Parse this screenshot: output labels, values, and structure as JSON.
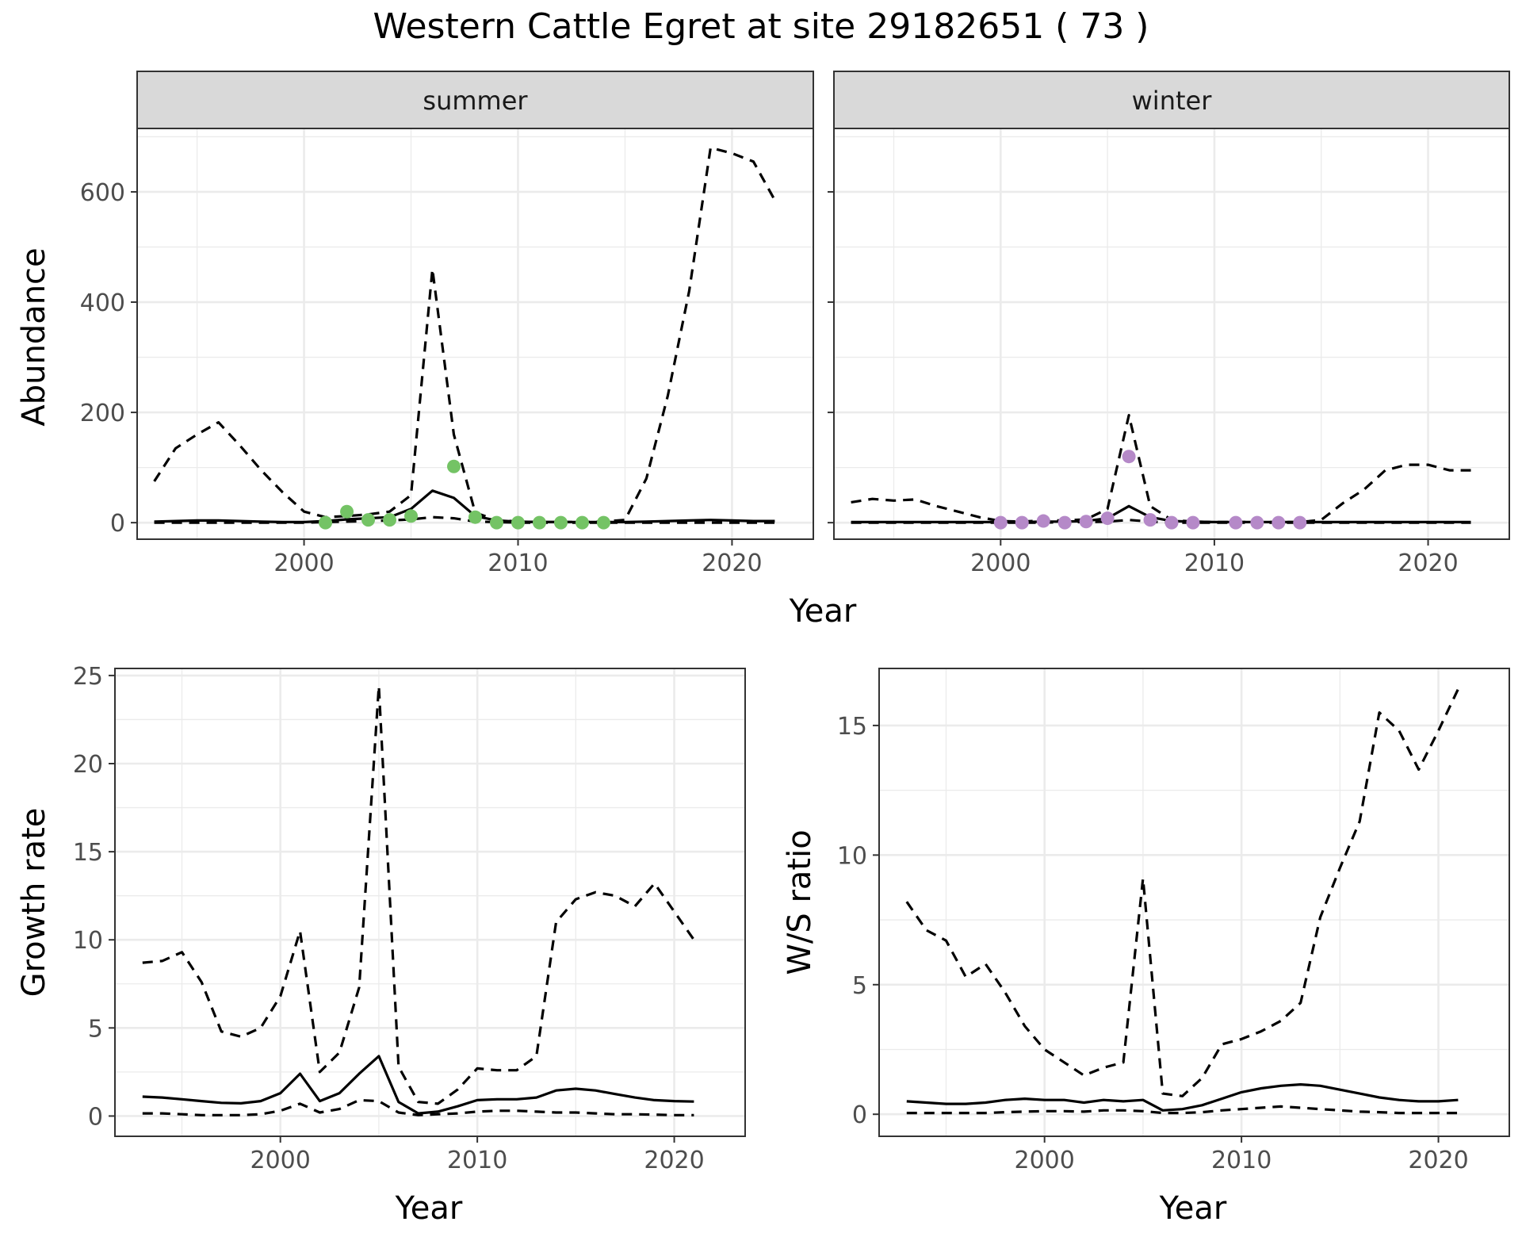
{
  "title": "Western Cattle Egret at site 29182651 ( 73 )",
  "abundance_xlabel": "Year",
  "chart_data": [
    {
      "type": "line",
      "panel": "abundance",
      "facet": "summer",
      "ylabel": "Abundance",
      "xlim": [
        1992.2,
        2023.8
      ],
      "ylim": [
        -30,
        715
      ],
      "x_ticks": [
        2000,
        2010,
        2020
      ],
      "y_ticks": [
        0,
        200,
        400,
        600
      ],
      "grid": true,
      "point_color": "#74c365",
      "series": [
        {
          "style": "solid",
          "x": [
            1993,
            1994,
            1995,
            1996,
            1997,
            1998,
            1999,
            2000,
            2001,
            2002,
            2003,
            2004,
            2005,
            2006,
            2007,
            2008,
            2009,
            2010,
            2011,
            2012,
            2013,
            2014,
            2015,
            2016,
            2017,
            2018,
            2019,
            2020,
            2021,
            2022
          ],
          "y": [
            2,
            3,
            4,
            4,
            3,
            2,
            1,
            1,
            3,
            6,
            8,
            10,
            25,
            58,
            45,
            12,
            4,
            2,
            1,
            1,
            1,
            1,
            1,
            2,
            3,
            4,
            5,
            4,
            3,
            3
          ]
        },
        {
          "style": "dashed",
          "x": [
            1993,
            1994,
            1995,
            1996,
            1997,
            1998,
            1999,
            2000,
            2001,
            2002,
            2003,
            2004,
            2005,
            2006,
            2007,
            2008,
            2009,
            2010,
            2011,
            2012,
            2013,
            2014,
            2015,
            2016,
            2017,
            2018,
            2019,
            2020,
            2021,
            2022
          ],
          "y": [
            75,
            135,
            160,
            182,
            140,
            95,
            55,
            20,
            10,
            12,
            15,
            20,
            50,
            460,
            160,
            18,
            5,
            2,
            1,
            1,
            1,
            2,
            5,
            80,
            230,
            420,
            680,
            670,
            655,
            585
          ]
        },
        {
          "style": "dashed",
          "x": [
            1993,
            1994,
            1995,
            1996,
            1997,
            1998,
            1999,
            2000,
            2001,
            2002,
            2003,
            2004,
            2005,
            2006,
            2007,
            2008,
            2009,
            2010,
            2011,
            2012,
            2013,
            2014,
            2015,
            2016,
            2017,
            2018,
            2019,
            2020,
            2021,
            2022
          ],
          "y": [
            0,
            0,
            0,
            0,
            0,
            0,
            0,
            0,
            1,
            2,
            3,
            4,
            6,
            10,
            8,
            2,
            1,
            0,
            0,
            0,
            0,
            0,
            0,
            0,
            0,
            0,
            0,
            0,
            0,
            0
          ]
        }
      ],
      "points": {
        "x": [
          2001,
          2002,
          2003,
          2004,
          2005,
          2007,
          2008,
          2009,
          2010,
          2011,
          2012,
          2013,
          2014
        ],
        "y": [
          0,
          20,
          5,
          5,
          12,
          102,
          10,
          0,
          0,
          0,
          0,
          0,
          0
        ]
      }
    },
    {
      "type": "line",
      "panel": "abundance",
      "facet": "winter",
      "xlim": [
        1992.2,
        2023.8
      ],
      "ylim": [
        -30,
        715
      ],
      "x_ticks": [
        2000,
        2010,
        2020
      ],
      "grid": true,
      "point_color": "#b589c8",
      "series": [
        {
          "style": "solid",
          "x": [
            1993,
            1994,
            1995,
            1996,
            1997,
            1998,
            1999,
            2000,
            2001,
            2002,
            2003,
            2004,
            2005,
            2006,
            2007,
            2008,
            2009,
            2010,
            2011,
            2012,
            2013,
            2014,
            2015,
            2016,
            2017,
            2018,
            2019,
            2020,
            2021,
            2022
          ],
          "y": [
            1,
            1,
            1,
            1,
            1,
            1,
            1,
            1,
            1,
            2,
            2,
            3,
            8,
            30,
            10,
            3,
            2,
            1,
            1,
            1,
            1,
            1,
            1,
            1,
            1,
            1,
            1,
            1,
            1,
            1
          ]
        },
        {
          "style": "dashed",
          "x": [
            1993,
            1994,
            1995,
            1996,
            1997,
            1998,
            1999,
            2000,
            2001,
            2002,
            2003,
            2004,
            2005,
            2006,
            2007,
            2008,
            2009,
            2010,
            2011,
            2012,
            2013,
            2014,
            2015,
            2016,
            2017,
            2018,
            2019,
            2020,
            2021,
            2022
          ],
          "y": [
            37,
            43,
            40,
            42,
            30,
            20,
            10,
            3,
            2,
            4,
            4,
            6,
            25,
            195,
            30,
            5,
            2,
            1,
            1,
            1,
            1,
            1,
            5,
            35,
            60,
            95,
            105,
            105,
            95,
            95
          ]
        },
        {
          "style": "dashed",
          "x": [
            1993,
            1994,
            1995,
            1996,
            1997,
            1998,
            1999,
            2000,
            2001,
            2002,
            2003,
            2004,
            2005,
            2006,
            2007,
            2008,
            2009,
            2010,
            2011,
            2012,
            2013,
            2014,
            2015,
            2016,
            2017,
            2018,
            2019,
            2020,
            2021,
            2022
          ],
          "y": [
            0,
            0,
            0,
            0,
            0,
            0,
            0,
            0,
            0,
            0,
            1,
            1,
            2,
            5,
            2,
            0,
            0,
            0,
            0,
            0,
            0,
            0,
            0,
            0,
            0,
            0,
            0,
            0,
            0,
            0
          ]
        }
      ],
      "points": {
        "x": [
          2000,
          2001,
          2002,
          2003,
          2004,
          2005,
          2006,
          2007,
          2008,
          2009,
          2011,
          2012,
          2013,
          2014
        ],
        "y": [
          0,
          0,
          3,
          0,
          2,
          8,
          120,
          5,
          0,
          0,
          0,
          0,
          0,
          0
        ]
      }
    },
    {
      "type": "line",
      "panel": "growth",
      "xlabel": "Year",
      "ylabel": "Growth rate",
      "xlim": [
        1991.6,
        2023.6
      ],
      "ylim": [
        -1.15,
        25.4
      ],
      "x_ticks": [
        2000,
        2010,
        2020
      ],
      "y_ticks": [
        0,
        5,
        10,
        15,
        20,
        25
      ],
      "grid": true,
      "series": [
        {
          "style": "solid",
          "x": [
            1993,
            1994,
            1995,
            1996,
            1997,
            1998,
            1999,
            2000,
            2001,
            2002,
            2003,
            2004,
            2005,
            2006,
            2007,
            2008,
            2009,
            2010,
            2011,
            2012,
            2013,
            2014,
            2015,
            2016,
            2017,
            2018,
            2019,
            2020,
            2021
          ],
          "y": [
            1.1,
            1.05,
            0.95,
            0.85,
            0.75,
            0.72,
            0.85,
            1.3,
            2.4,
            0.85,
            1.3,
            2.4,
            3.4,
            0.8,
            0.15,
            0.25,
            0.55,
            0.9,
            0.95,
            0.95,
            1.05,
            1.45,
            1.55,
            1.45,
            1.25,
            1.05,
            0.9,
            0.85,
            0.82
          ]
        },
        {
          "style": "dashed",
          "x": [
            1993,
            1994,
            1995,
            1996,
            1997,
            1998,
            1999,
            2000,
            2001,
            2002,
            2003,
            2004,
            2005,
            2006,
            2007,
            2008,
            2009,
            2010,
            2011,
            2012,
            2013,
            2014,
            2015,
            2016,
            2017,
            2018,
            2019,
            2020,
            2021
          ],
          "y": [
            8.7,
            8.8,
            9.3,
            7.6,
            4.8,
            4.5,
            5.0,
            6.8,
            10.5,
            2.5,
            3.6,
            7.3,
            24.4,
            2.8,
            0.8,
            0.7,
            1.5,
            2.7,
            2.6,
            2.6,
            3.4,
            11.0,
            12.3,
            12.7,
            12.5,
            11.9,
            13.2,
            11.6,
            10.0
          ]
        },
        {
          "style": "dashed",
          "x": [
            1993,
            1994,
            1995,
            1996,
            1997,
            1998,
            1999,
            2000,
            2001,
            2002,
            2003,
            2004,
            2005,
            2006,
            2007,
            2008,
            2009,
            2010,
            2011,
            2012,
            2013,
            2014,
            2015,
            2016,
            2017,
            2018,
            2019,
            2020,
            2021
          ],
          "y": [
            0.15,
            0.15,
            0.1,
            0.05,
            0.05,
            0.05,
            0.1,
            0.3,
            0.7,
            0.2,
            0.4,
            0.9,
            0.85,
            0.2,
            0.05,
            0.1,
            0.15,
            0.25,
            0.3,
            0.3,
            0.25,
            0.2,
            0.2,
            0.15,
            0.1,
            0.1,
            0.08,
            0.05,
            0.05
          ]
        }
      ]
    },
    {
      "type": "line",
      "panel": "ratio",
      "xlabel": "Year",
      "ylabel": "W/S ratio",
      "xlim": [
        1991.6,
        2023.6
      ],
      "ylim": [
        -0.85,
        17.2
      ],
      "x_ticks": [
        2000,
        2010,
        2020
      ],
      "y_ticks": [
        0,
        5,
        10,
        15
      ],
      "grid": true,
      "series": [
        {
          "style": "solid",
          "x": [
            1993,
            1994,
            1995,
            1996,
            1997,
            1998,
            1999,
            2000,
            2001,
            2002,
            2003,
            2004,
            2005,
            2006,
            2007,
            2008,
            2009,
            2010,
            2011,
            2012,
            2013,
            2014,
            2015,
            2016,
            2017,
            2018,
            2019,
            2020,
            2021
          ],
          "y": [
            0.5,
            0.45,
            0.4,
            0.4,
            0.45,
            0.55,
            0.6,
            0.55,
            0.55,
            0.45,
            0.55,
            0.5,
            0.55,
            0.15,
            0.2,
            0.35,
            0.6,
            0.85,
            1.0,
            1.1,
            1.15,
            1.1,
            0.95,
            0.8,
            0.65,
            0.55,
            0.5,
            0.5,
            0.55
          ]
        },
        {
          "style": "dashed",
          "x": [
            1993,
            1994,
            1995,
            1996,
            1997,
            1998,
            1999,
            2000,
            2001,
            2002,
            2003,
            2004,
            2005,
            2006,
            2007,
            2008,
            2009,
            2010,
            2011,
            2012,
            2013,
            2014,
            2015,
            2016,
            2017,
            2018,
            2019,
            2020,
            2021
          ],
          "y": [
            8.2,
            7.1,
            6.7,
            5.3,
            5.8,
            4.7,
            3.4,
            2.5,
            2.0,
            1.5,
            1.8,
            2.0,
            9.1,
            0.8,
            0.7,
            1.4,
            2.7,
            2.9,
            3.2,
            3.6,
            4.3,
            7.6,
            9.5,
            11.3,
            15.5,
            14.8,
            13.3,
            14.8,
            16.4
          ]
        },
        {
          "style": "dashed",
          "x": [
            1993,
            1994,
            1995,
            1996,
            1997,
            1998,
            1999,
            2000,
            2001,
            2002,
            2003,
            2004,
            2005,
            2006,
            2007,
            2008,
            2009,
            2010,
            2011,
            2012,
            2013,
            2014,
            2015,
            2016,
            2017,
            2018,
            2019,
            2020,
            2021
          ],
          "y": [
            0.05,
            0.05,
            0.05,
            0.05,
            0.05,
            0.08,
            0.1,
            0.12,
            0.12,
            0.1,
            0.15,
            0.15,
            0.12,
            0.05,
            0.05,
            0.08,
            0.15,
            0.2,
            0.25,
            0.3,
            0.25,
            0.2,
            0.15,
            0.1,
            0.08,
            0.05,
            0.05,
            0.05,
            0.05
          ]
        }
      ]
    }
  ]
}
